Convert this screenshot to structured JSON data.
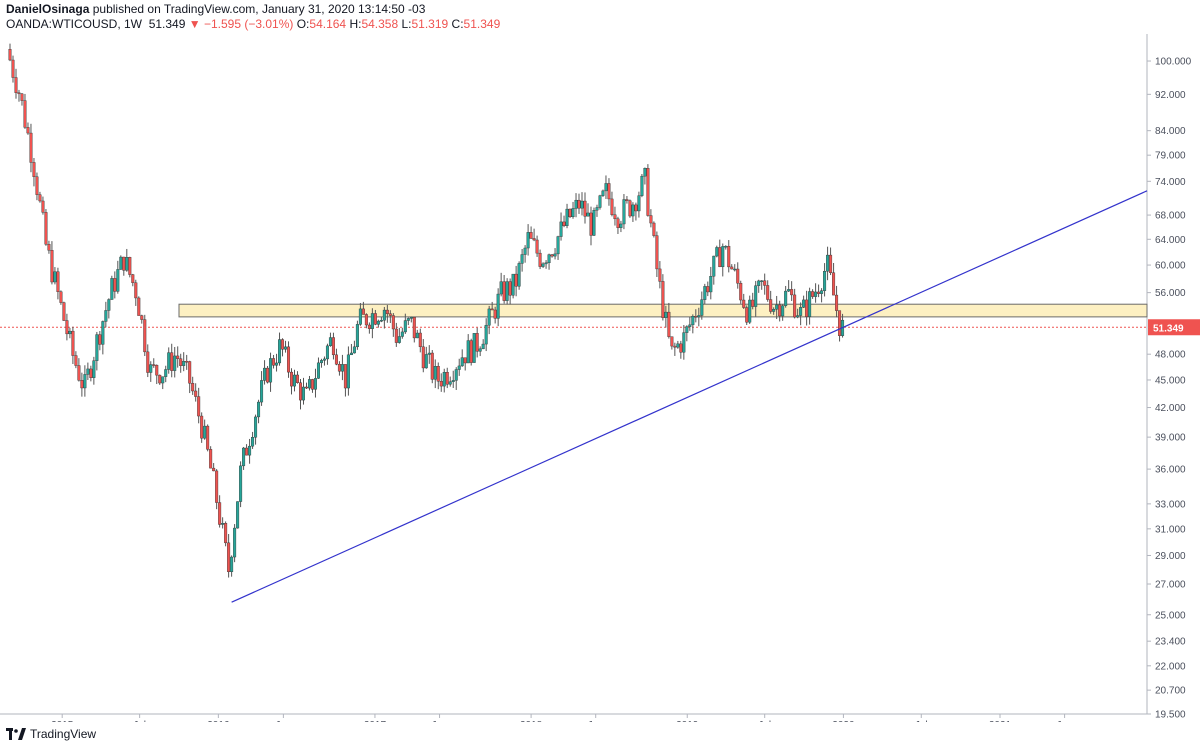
{
  "header": {
    "author": "DanielOsinaga",
    "published_text": "published on TradingView.com, January 31, 2020 13:14:50 -03",
    "symbol": "OANDA:WTICOUSD, 1W",
    "last": "51.349",
    "change_arrow": "▼",
    "change": "−1.595 (−3.01%)",
    "open_label": "O:",
    "open": "54.164",
    "high_label": "H:",
    "high": "54.358",
    "low_label": "L:",
    "low": "51.319",
    "close_label": "C:",
    "close": "51.349"
  },
  "footer": {
    "brand": "TradingView",
    "logo_icon": "tradingview-logo-icon"
  },
  "colors": {
    "up": "#26a69a",
    "down": "#ef5350",
    "trendline": "#3333cc",
    "zone_fill": "#fdf0c2",
    "price_line": "#ef5350"
  },
  "chart_data": {
    "type": "candlestick",
    "title": "",
    "xlabel": "",
    "ylabel": "",
    "scale": "log",
    "ylim": [
      19.5,
      107
    ],
    "y_ticks": [
      "100.000",
      "92.000",
      "84.000",
      "79.000",
      "74.000",
      "68.000",
      "64.000",
      "60.000",
      "56.000",
      "51.349",
      "48.000",
      "45.000",
      "42.000",
      "39.000",
      "36.000",
      "33.000",
      "31.000",
      "29.000",
      "27.000",
      "25.000",
      "23.400",
      "22.000",
      "20.700",
      "19.500"
    ],
    "x_ticks": [
      "2015",
      "Jul",
      "2016",
      "Jun",
      "2017",
      "Jun",
      "2018",
      "Jun",
      "2019",
      "Jul",
      "2020",
      "Jul",
      "2021",
      "Jun"
    ],
    "last_price": {
      "value": 51.349,
      "label": "51.349"
    },
    "support_zone": {
      "from": "2015-10",
      "to": "open",
      "low": 52.7,
      "high": 54.4
    },
    "trendline": {
      "start": {
        "date": "2016-02",
        "value": 25.8
      },
      "through": {
        "date": "2020-01",
        "value": 51.35
      }
    },
    "series": [
      {
        "name": "",
        "path": [
          [
            "2014-09",
            103
          ],
          [
            "2014-10",
            92
          ],
          [
            "2014-11",
            78
          ],
          [
            "2014-12",
            63
          ],
          [
            "2015-01",
            55
          ],
          [
            "2015-02",
            48
          ],
          [
            "2015-03",
            44
          ],
          [
            "2015-04",
            50
          ],
          [
            "2015-05",
            56
          ],
          [
            "2015-06",
            61
          ],
          [
            "2015-07",
            56
          ],
          [
            "2015-08",
            46
          ],
          [
            "2015-09",
            46
          ],
          [
            "2015-10",
            48
          ],
          [
            "2015-11",
            45
          ],
          [
            "2015-12",
            40
          ],
          [
            "2016-01",
            34
          ],
          [
            "2016-02",
            28
          ],
          [
            "2016-03",
            36
          ],
          [
            "2016-04",
            41
          ],
          [
            "2016-05",
            46
          ],
          [
            "2016-06",
            49
          ],
          [
            "2016-07",
            45
          ],
          [
            "2016-08",
            43
          ],
          [
            "2016-09",
            47
          ],
          [
            "2016-10",
            50
          ],
          [
            "2016-11",
            45
          ],
          [
            "2016-12",
            52
          ],
          [
            "2017-01",
            53
          ],
          [
            "2017-02",
            54
          ],
          [
            "2017-03",
            50
          ],
          [
            "2017-04",
            52
          ],
          [
            "2017-05",
            48
          ],
          [
            "2017-06",
            45
          ],
          [
            "2017-07",
            46
          ],
          [
            "2017-08",
            48
          ],
          [
            "2017-09",
            49
          ],
          [
            "2017-10",
            52
          ],
          [
            "2017-11",
            56
          ],
          [
            "2017-12",
            57
          ],
          [
            "2018-01",
            64
          ],
          [
            "2018-02",
            61
          ],
          [
            "2018-03",
            63
          ],
          [
            "2018-04",
            67
          ],
          [
            "2018-05",
            70
          ],
          [
            "2018-06",
            66
          ],
          [
            "2018-07",
            72
          ],
          [
            "2018-08",
            68
          ],
          [
            "2018-09",
            70
          ],
          [
            "2018-10",
            74
          ],
          [
            "2018-11",
            58
          ],
          [
            "2018-12",
            48
          ],
          [
            "2019-01",
            50
          ],
          [
            "2019-02",
            54
          ],
          [
            "2019-03",
            58
          ],
          [
            "2019-04",
            63
          ],
          [
            "2019-05",
            58
          ],
          [
            "2019-06",
            53
          ],
          [
            "2019-07",
            57
          ],
          [
            "2019-08",
            54
          ],
          [
            "2019-09",
            56
          ],
          [
            "2019-10",
            53
          ],
          [
            "2019-11",
            56
          ],
          [
            "2019-12",
            60
          ],
          [
            "2020-01",
            51.3
          ]
        ]
      }
    ]
  }
}
